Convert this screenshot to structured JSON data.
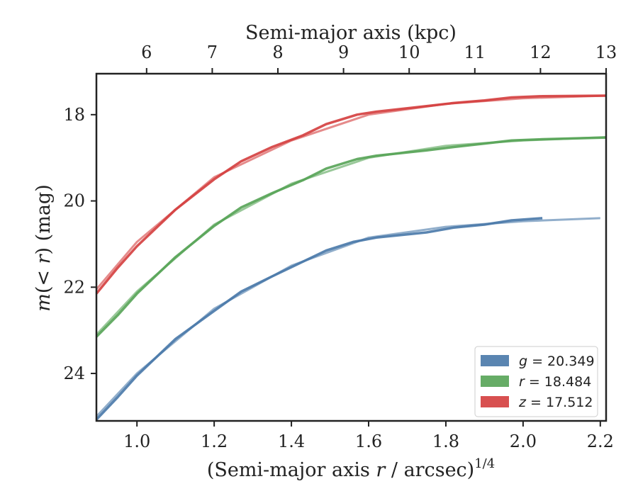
{
  "chart_data": {
    "type": "line",
    "xlabel_bottom": "(Semi-major axis r / arcsec)",
    "xlabel_bottom_exponent": "1/4",
    "xlabel_top": "Semi-major axis (kpc)",
    "ylabel": "m(< r) (mag)",
    "xlim": [
      0.895,
      2.215
    ],
    "ylim": [
      25.1,
      17.05
    ],
    "y_inverted": true,
    "x_ticks": [
      1.0,
      1.2,
      1.4,
      1.6,
      1.8,
      2.0,
      2.2
    ],
    "x_tick_labels": [
      "1.0",
      "1.2",
      "1.4",
      "1.6",
      "1.8",
      "2.0",
      "2.2"
    ],
    "y_ticks": [
      18,
      20,
      22,
      24
    ],
    "y_tick_labels": [
      "18",
      "20",
      "22",
      "24"
    ],
    "top_ticks_kpc": [
      6,
      7,
      8,
      9,
      10,
      11,
      12,
      13
    ],
    "top_tick_positions_x": [
      1.025,
      1.195,
      1.365,
      1.535,
      1.705,
      1.875,
      2.045,
      2.215
    ],
    "top_tick_labels": [
      "6",
      "7",
      "8",
      "9",
      "10",
      "11",
      "12",
      "13"
    ],
    "grid": false,
    "legend_position": "lower-right",
    "series": [
      {
        "name": "g = 20.349",
        "legend_var": "g",
        "legend_value": "20.349",
        "color": "#4878a8",
        "points": [
          [
            0.895,
            25.07
          ],
          [
            0.95,
            24.55
          ],
          [
            1.0,
            24.05
          ],
          [
            1.1,
            23.2
          ],
          [
            1.2,
            22.55
          ],
          [
            1.27,
            22.1
          ],
          [
            1.35,
            21.75
          ],
          [
            1.42,
            21.45
          ],
          [
            1.49,
            21.15
          ],
          [
            1.56,
            20.95
          ],
          [
            1.62,
            20.85
          ],
          [
            1.75,
            20.73
          ],
          [
            1.82,
            20.62
          ],
          [
            1.9,
            20.55
          ],
          [
            1.97,
            20.45
          ],
          [
            2.05,
            20.4
          ]
        ],
        "smooth_points": [
          [
            0.895,
            25.0
          ],
          [
            1.0,
            24.0
          ],
          [
            1.2,
            22.5
          ],
          [
            1.4,
            21.5
          ],
          [
            1.6,
            20.85
          ],
          [
            1.8,
            20.6
          ],
          [
            2.0,
            20.47
          ],
          [
            2.2,
            20.4
          ]
        ]
      },
      {
        "name": "r = 18.484",
        "legend_var": "r",
        "legend_value": "18.484",
        "color": "#55a355",
        "points": [
          [
            0.895,
            23.15
          ],
          [
            0.95,
            22.65
          ],
          [
            1.0,
            22.15
          ],
          [
            1.1,
            21.3
          ],
          [
            1.2,
            20.58
          ],
          [
            1.27,
            20.15
          ],
          [
            1.35,
            19.82
          ],
          [
            1.43,
            19.52
          ],
          [
            1.49,
            19.25
          ],
          [
            1.57,
            19.03
          ],
          [
            1.62,
            18.95
          ],
          [
            1.75,
            18.83
          ],
          [
            1.82,
            18.75
          ],
          [
            1.9,
            18.67
          ],
          [
            1.97,
            18.6
          ],
          [
            2.05,
            18.57
          ],
          [
            2.215,
            18.53
          ]
        ],
        "smooth_points": [
          [
            0.895,
            23.1
          ],
          [
            1.0,
            22.1
          ],
          [
            1.2,
            20.55
          ],
          [
            1.4,
            19.6
          ],
          [
            1.6,
            19.0
          ],
          [
            1.8,
            18.72
          ],
          [
            2.0,
            18.6
          ],
          [
            2.215,
            18.52
          ]
        ]
      },
      {
        "name": "z = 17.512",
        "legend_var": "z",
        "legend_value": "17.512",
        "color": "#d43d3d",
        "points": [
          [
            0.895,
            22.15
          ],
          [
            0.95,
            21.55
          ],
          [
            1.0,
            21.05
          ],
          [
            1.1,
            20.2
          ],
          [
            1.2,
            19.5
          ],
          [
            1.27,
            19.08
          ],
          [
            1.35,
            18.75
          ],
          [
            1.43,
            18.48
          ],
          [
            1.49,
            18.22
          ],
          [
            1.57,
            18.0
          ],
          [
            1.62,
            17.93
          ],
          [
            1.75,
            17.8
          ],
          [
            1.82,
            17.73
          ],
          [
            1.9,
            17.67
          ],
          [
            1.97,
            17.6
          ],
          [
            2.05,
            17.57
          ],
          [
            2.215,
            17.56
          ]
        ],
        "smooth_points": [
          [
            0.895,
            22.05
          ],
          [
            1.0,
            20.95
          ],
          [
            1.2,
            19.45
          ],
          [
            1.4,
            18.6
          ],
          [
            1.6,
            18.0
          ],
          [
            1.8,
            17.75
          ],
          [
            2.0,
            17.62
          ],
          [
            2.215,
            17.56
          ]
        ]
      }
    ]
  }
}
